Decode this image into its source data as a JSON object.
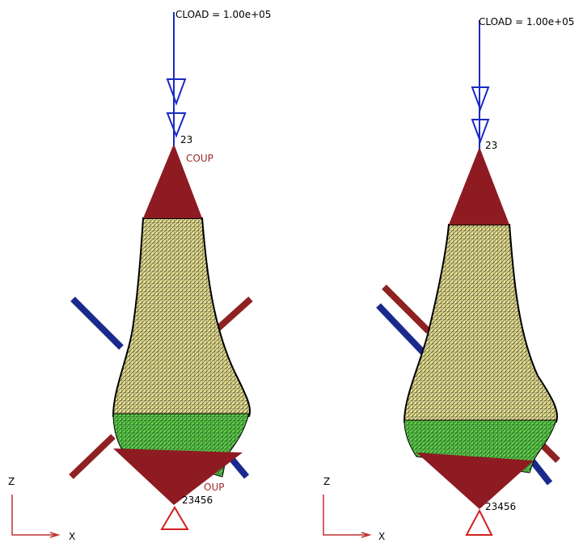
{
  "views": [
    {
      "load_label": "CLOAD = 1.00e+05",
      "top_node": "23",
      "top_tag": "COUP",
      "bottom_tag": "OUP",
      "bottom_node": "23456",
      "axis_z": "Z",
      "axis_x": "X"
    },
    {
      "load_label": "CLOAD = 1.00e+05",
      "top_node": "23",
      "bottom_node": "23456",
      "axis_z": "Z",
      "axis_x": "X"
    }
  ]
}
